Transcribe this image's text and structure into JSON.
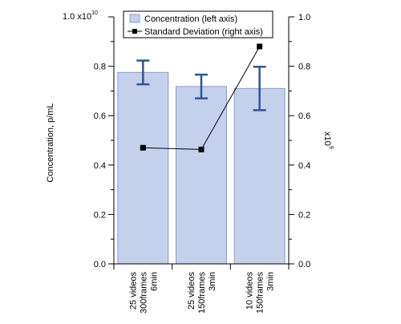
{
  "chart_data": {
    "type": "bar",
    "categories": [
      [
        "25 videos",
        "300frames",
        "6min"
      ],
      [
        "25 videos",
        "150frames",
        "3min"
      ],
      [
        "10 videos",
        "150frames",
        "3min"
      ]
    ],
    "left_axis": {
      "label": "Concentration, p/mL",
      "multiplier_base": "1.0 x10",
      "multiplier_exp": "10",
      "ylim": [
        0,
        1.0
      ],
      "ticks": [
        0.0,
        0.2,
        0.4,
        0.6,
        0.8,
        1.0
      ],
      "tick_labels": [
        "0.0",
        "0.2",
        "0.4",
        "0.6",
        "0.8",
        ""
      ]
    },
    "right_axis": {
      "label_base": "x10",
      "label_exp": "9",
      "ylim": [
        0,
        1.0
      ],
      "ticks": [
        0.0,
        0.2,
        0.4,
        0.6,
        0.8,
        1.0
      ],
      "tick_labels": [
        "0.0",
        "0.2",
        "0.4",
        "0.6",
        "0.8",
        "1.0"
      ]
    },
    "series": [
      {
        "name": "Concentration (left axis)",
        "kind": "bar",
        "axis": "left",
        "values": [
          0.775,
          0.718,
          0.71
        ],
        "error": [
          0.048,
          0.048,
          0.088
        ],
        "color": "#c5d0ec",
        "edge_color": "#8a9ccf",
        "error_color": "#2f5597"
      },
      {
        "name": "Standard Deviation (right axis)",
        "kind": "line",
        "axis": "right",
        "values": [
          0.47,
          0.463,
          0.88
        ],
        "color": "#000000"
      }
    ],
    "legend_position": "top-center",
    "grid": false
  }
}
